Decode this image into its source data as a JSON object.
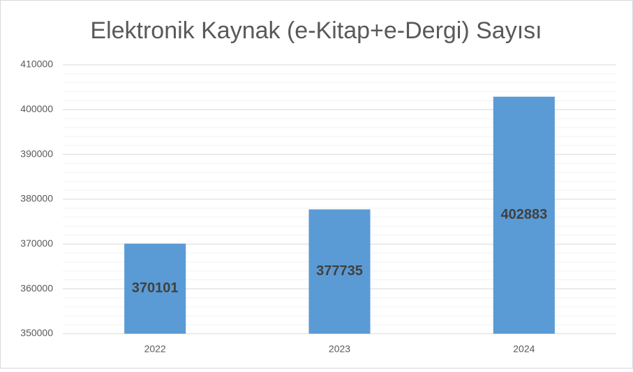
{
  "chart_data": {
    "type": "bar",
    "title": "Elektronik Kaynak (e-Kitap+e-Dergi) Sayısı",
    "categories": [
      "2022",
      "2023",
      "2024"
    ],
    "values": [
      370101,
      377735,
      402883
    ],
    "color": "#5b9bd5",
    "ylim": [
      350000,
      410000
    ],
    "yticks": [
      350000,
      360000,
      370000,
      380000,
      390000,
      400000,
      410000
    ],
    "grid": true,
    "minor_grid_divisions": 5,
    "data_labels": true
  }
}
